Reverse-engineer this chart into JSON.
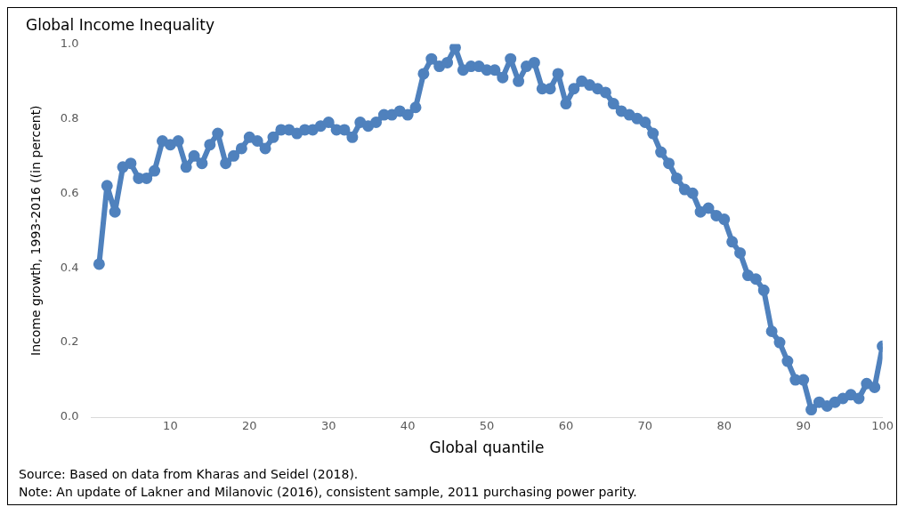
{
  "chart_data": {
    "type": "line",
    "title": "Global Income Inequality",
    "xlabel": "Global quantile",
    "ylabel": "Income growth, 1993-2016 ((in percent)",
    "x": [
      1,
      2,
      3,
      4,
      5,
      6,
      7,
      8,
      9,
      10,
      11,
      12,
      13,
      14,
      15,
      16,
      17,
      18,
      19,
      20,
      21,
      22,
      23,
      24,
      25,
      26,
      27,
      28,
      29,
      30,
      31,
      32,
      33,
      34,
      35,
      36,
      37,
      38,
      39,
      40,
      41,
      42,
      43,
      44,
      45,
      46,
      47,
      48,
      49,
      50,
      51,
      52,
      53,
      54,
      55,
      56,
      57,
      58,
      59,
      60,
      61,
      62,
      63,
      64,
      65,
      66,
      67,
      68,
      69,
      70,
      71,
      72,
      73,
      74,
      75,
      76,
      77,
      78,
      79,
      80,
      81,
      82,
      83,
      84,
      85,
      86,
      87,
      88,
      89,
      90,
      91,
      92,
      93,
      94,
      95,
      96,
      97,
      98,
      99,
      100
    ],
    "series": [
      {
        "color": "#4f81bd",
        "values": [
          0.41,
          0.62,
          0.55,
          0.67,
          0.68,
          0.64,
          0.64,
          0.66,
          0.74,
          0.73,
          0.74,
          0.67,
          0.7,
          0.68,
          0.73,
          0.76,
          0.68,
          0.7,
          0.72,
          0.75,
          0.74,
          0.72,
          0.75,
          0.77,
          0.77,
          0.76,
          0.77,
          0.77,
          0.78,
          0.79,
          0.77,
          0.77,
          0.75,
          0.79,
          0.78,
          0.79,
          0.81,
          0.81,
          0.82,
          0.81,
          0.83,
          0.92,
          0.96,
          0.94,
          0.95,
          0.99,
          0.93,
          0.94,
          0.94,
          0.93,
          0.93,
          0.91,
          0.96,
          0.9,
          0.94,
          0.95,
          0.88,
          0.88,
          0.92,
          0.84,
          0.88,
          0.9,
          0.89,
          0.88,
          0.87,
          0.84,
          0.82,
          0.81,
          0.8,
          0.79,
          0.76,
          0.71,
          0.68,
          0.64,
          0.61,
          0.6,
          0.55,
          0.56,
          0.54,
          0.53,
          0.47,
          0.44,
          0.38,
          0.37,
          0.34,
          0.23,
          0.2,
          0.15,
          0.1,
          0.1,
          0.02,
          0.04,
          0.03,
          0.04,
          0.05,
          0.06,
          0.05,
          0.09,
          0.08,
          0.19
        ]
      }
    ],
    "xlim": [
      0,
      100
    ],
    "xticks": [
      10,
      20,
      30,
      40,
      50,
      60,
      70,
      80,
      90,
      100
    ],
    "ylim": [
      0,
      1
    ],
    "yticks": [
      {
        "value": 0,
        "label": "0.0"
      },
      {
        "value": 0.2,
        "label": "0.2"
      },
      {
        "value": 0.4,
        "label": "0.4"
      },
      {
        "value": 0.6,
        "label": "0.6"
      },
      {
        "value": 0.8,
        "label": "0.8"
      },
      {
        "value": 1,
        "label": "1.0"
      }
    ],
    "grid": false,
    "legend": false,
    "marker": "circle",
    "line_style": "solid",
    "annotations": [
      "Source: Based on data from Kharas and Seidel (2018).",
      "Note: An update of Lakner and Milanovic (2016), consistent sample, 2011 purchasing power parity."
    ]
  }
}
